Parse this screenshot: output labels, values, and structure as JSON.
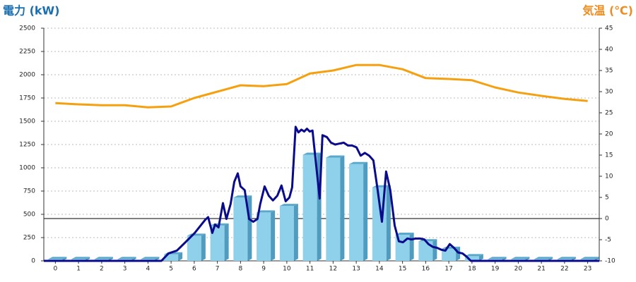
{
  "chart_data": {
    "type": "bar",
    "title_left": "電力 (kW)",
    "title_right": "気温 (℃)",
    "categories": [
      0,
      1,
      2,
      3,
      4,
      5,
      6,
      7,
      8,
      9,
      10,
      11,
      12,
      13,
      14,
      15,
      16,
      17,
      18,
      19,
      20,
      21,
      22,
      23
    ],
    "xlim": [
      -0.5,
      23.5
    ],
    "ylim": [
      0,
      2500
    ],
    "yticks": [
      0,
      250,
      500,
      750,
      1000,
      1250,
      1500,
      1750,
      2000,
      2250,
      2500
    ],
    "y2lim": [
      -10,
      45
    ],
    "y2ticks": [
      -10,
      -5,
      0,
      5,
      10,
      15,
      20,
      25,
      30,
      35,
      40,
      45
    ],
    "y2_reference": 0,
    "grid": true,
    "series": [
      {
        "type": "bar",
        "color": "#8fd0ea",
        "values": [
          20,
          20,
          20,
          20,
          20,
          70,
          270,
          380,
          680,
          520,
          590,
          1140,
          1110,
          1040,
          790,
          280,
          210,
          130,
          50,
          20,
          20,
          20,
          20,
          20
        ]
      },
      {
        "type": "line",
        "color": "#0a0a8c",
        "x": [
          -0.5,
          4.58,
          4.89,
          5.25,
          5.62,
          6.02,
          6.47,
          6.6,
          6.78,
          6.9,
          7.05,
          7.24,
          7.39,
          7.57,
          7.73,
          7.88,
          8.0,
          8.18,
          8.37,
          8.55,
          8.73,
          8.85,
          9.04,
          9.22,
          9.4,
          9.59,
          9.77,
          9.95,
          10.11,
          10.23,
          10.38,
          10.5,
          10.63,
          10.75,
          10.87,
          10.99,
          11.11,
          11.42,
          11.54,
          11.73,
          11.91,
          12.09,
          12.27,
          12.46,
          12.64,
          12.82,
          13.01,
          13.19,
          13.37,
          13.56,
          13.74,
          13.92,
          14.11,
          14.29,
          14.47,
          14.66,
          14.84,
          15.02,
          15.21,
          15.39,
          15.57,
          15.76,
          15.94,
          16.12,
          16.31,
          16.49,
          16.67,
          16.85,
          17.04,
          17.22,
          17.4,
          17.59,
          17.77,
          17.95,
          23.5
        ],
        "values": [
          0,
          0,
          80,
          110,
          200,
          300,
          440,
          470,
          300,
          390,
          360,
          620,
          450,
          610,
          850,
          940,
          800,
          760,
          450,
          420,
          450,
          610,
          800,
          700,
          650,
          700,
          810,
          640,
          680,
          790,
          1440,
          1380,
          1410,
          1390,
          1420,
          1390,
          1400,
          670,
          1350,
          1330,
          1270,
          1250,
          1260,
          1270,
          1240,
          1240,
          1220,
          1130,
          1160,
          1130,
          1080,
          770,
          420,
          960,
          760,
          380,
          210,
          200,
          240,
          230,
          240,
          240,
          230,
          180,
          150,
          140,
          120,
          110,
          180,
          140,
          90,
          80,
          45,
          0,
          0
        ]
      },
      {
        "type": "line",
        "axis": "y2",
        "color": "#f5a00f",
        "values": [
          27.3,
          27,
          26.8,
          26.8,
          26.3,
          26.5,
          28.5,
          30,
          31.5,
          31.3,
          31.8,
          34.3,
          35,
          36.3,
          36.3,
          35.3,
          33.2,
          33,
          32.7,
          31,
          29.8,
          29,
          28.3,
          27.8
        ]
      }
    ]
  }
}
